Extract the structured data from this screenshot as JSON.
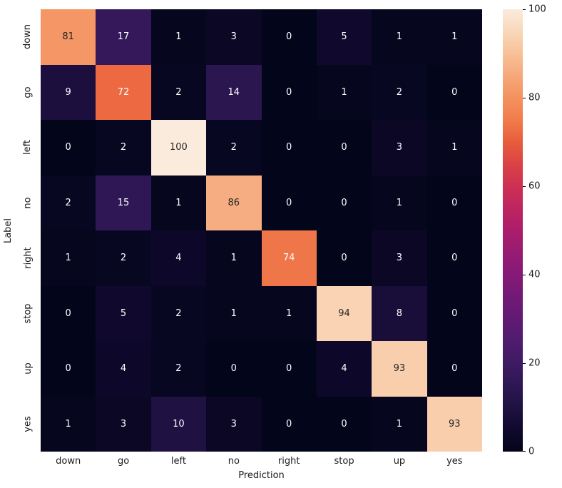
{
  "figure": {
    "background": "#ffffff",
    "text_color": "#1a1a1a"
  },
  "chart_data": {
    "type": "heatmap",
    "title": "",
    "xlabel": "Prediction",
    "ylabel": "Label",
    "x_categories": [
      "down",
      "go",
      "left",
      "no",
      "right",
      "stop",
      "up",
      "yes"
    ],
    "y_categories": [
      "down",
      "go",
      "left",
      "no",
      "right",
      "stop",
      "up",
      "yes"
    ],
    "values": [
      [
        81,
        17,
        1,
        3,
        0,
        5,
        1,
        1
      ],
      [
        9,
        72,
        2,
        14,
        0,
        1,
        2,
        0
      ],
      [
        0,
        2,
        100,
        2,
        0,
        0,
        3,
        1
      ],
      [
        2,
        15,
        1,
        86,
        0,
        0,
        1,
        0
      ],
      [
        1,
        2,
        4,
        1,
        74,
        0,
        3,
        0
      ],
      [
        0,
        5,
        2,
        1,
        1,
        94,
        8,
        0
      ],
      [
        0,
        4,
        2,
        0,
        0,
        4,
        93,
        0
      ],
      [
        1,
        3,
        10,
        3,
        0,
        0,
        1,
        93
      ]
    ],
    "vmin": 0,
    "vmax": 100,
    "grid": false,
    "legend_position": "none",
    "colorbar": {
      "position": "right",
      "ticks": [
        0,
        20,
        40,
        60,
        80,
        100
      ]
    },
    "colormap": {
      "name": "rocket",
      "stops": [
        [
          0.0,
          "#03051A"
        ],
        [
          0.05,
          "#10092D"
        ],
        [
          0.1,
          "#1F1142"
        ],
        [
          0.15,
          "#2E1754"
        ],
        [
          0.2,
          "#3E1A63"
        ],
        [
          0.25,
          "#4F1C6E"
        ],
        [
          0.3,
          "#611A74"
        ],
        [
          0.35,
          "#731977"
        ],
        [
          0.4,
          "#851A76"
        ],
        [
          0.45,
          "#981B72"
        ],
        [
          0.5,
          "#AB1D6B"
        ],
        [
          0.55,
          "#BD2560"
        ],
        [
          0.6,
          "#CD3052"
        ],
        [
          0.65,
          "#DB4245"
        ],
        [
          0.7,
          "#E85D3C"
        ],
        [
          0.75,
          "#F17C4C"
        ],
        [
          0.8,
          "#F4925F"
        ],
        [
          0.85,
          "#F6A87B"
        ],
        [
          0.9,
          "#F8C198"
        ],
        [
          0.95,
          "#F9D7BA"
        ],
        [
          1.0,
          "#FAEBDD"
        ]
      ]
    },
    "annotation_text_colors": {
      "on_dark_cell": "#ffffff",
      "on_light_cell": "#262626"
    }
  }
}
